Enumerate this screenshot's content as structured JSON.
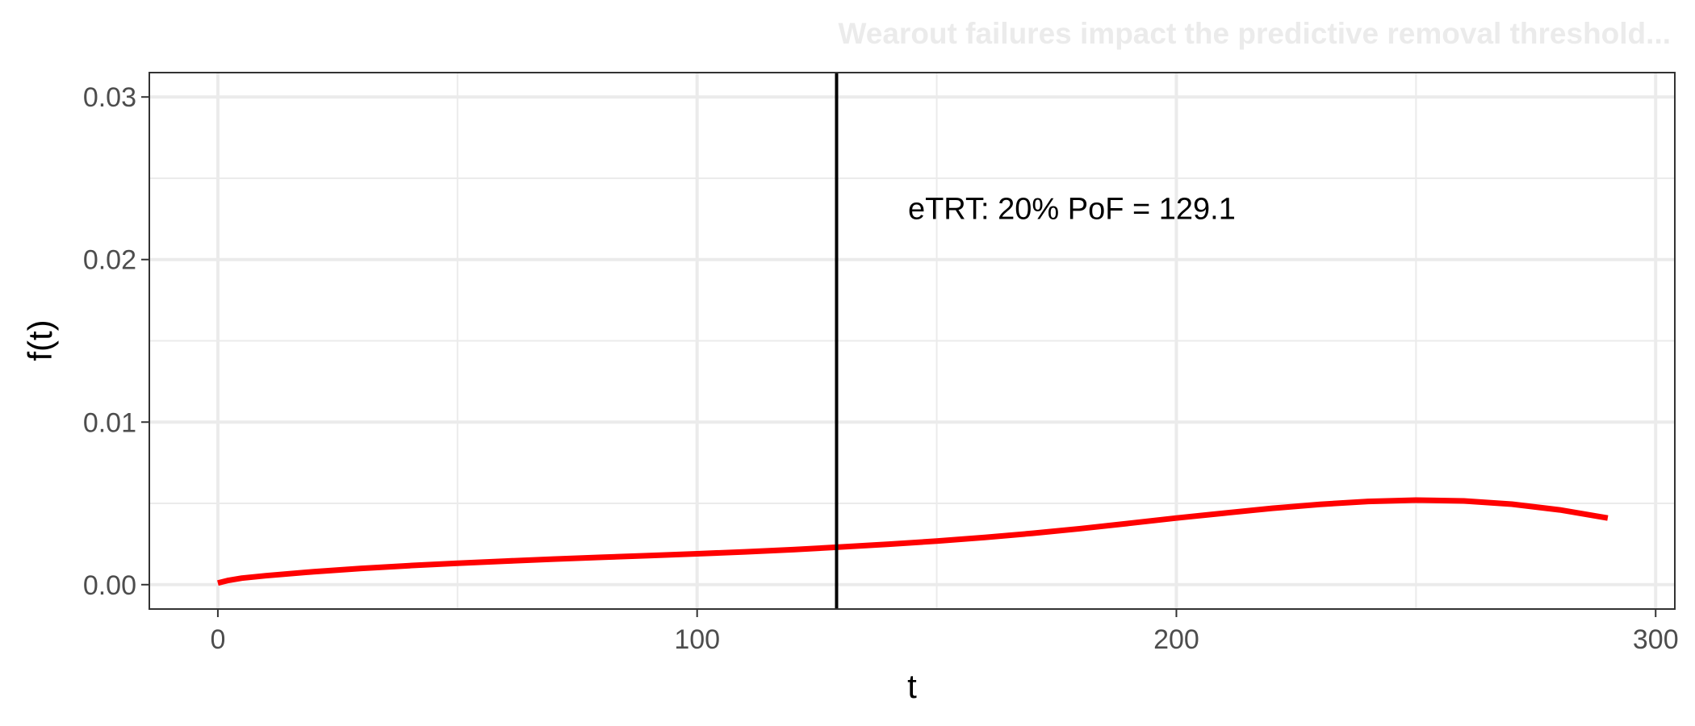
{
  "caption": "Wearout failures impact the predictive removal threshold...",
  "colors": {
    "curve": "#ff0000",
    "threshold_line": "#000000",
    "grid": "#ebebeb",
    "panel_border": "#333333",
    "tick_label": "#4d4d4d",
    "caption": "#ebebeb"
  },
  "chart_data": {
    "type": "line",
    "title": "",
    "xlabel": "t",
    "ylabel": "f(t)",
    "xlim": [
      -14.3,
      304
    ],
    "ylim": [
      -0.0015,
      0.0315
    ],
    "x_ticks": [
      0,
      100,
      200,
      300
    ],
    "x_tick_labels": [
      "0",
      "100",
      "200",
      "300"
    ],
    "x_minor_ticks": [
      50,
      150,
      250
    ],
    "y_ticks": [
      0,
      0.01,
      0.02,
      0.03
    ],
    "y_tick_labels": [
      "0.00",
      "0.01",
      "0.02",
      "0.03"
    ],
    "y_minor_ticks": [
      0.005,
      0.015,
      0.025
    ],
    "grid": true,
    "legend": "none",
    "series": [
      {
        "x": [
          0,
          2,
          5,
          10,
          20,
          30,
          40,
          50,
          60,
          70,
          80,
          90,
          100,
          110,
          120,
          129.1,
          140,
          150,
          160,
          170,
          180,
          190,
          200,
          210,
          220,
          230,
          240,
          250,
          260,
          270,
          280,
          290
        ],
        "y": [
          0.0001,
          0.00025,
          0.0004,
          0.00055,
          0.0008,
          0.001,
          0.00117,
          0.00132,
          0.00145,
          0.00157,
          0.00168,
          0.00179,
          0.0019,
          0.00202,
          0.00215,
          0.0023,
          0.00249,
          0.00268,
          0.0029,
          0.00316,
          0.00345,
          0.00377,
          0.0041,
          0.0044,
          0.0047,
          0.00494,
          0.00512,
          0.0052,
          0.00515,
          0.00495,
          0.0046,
          0.0041
        ]
      }
    ],
    "threshold": {
      "x": 129.1,
      "label": "eTRT: 20% PoF = 129.1",
      "label_x": 144,
      "label_y": 0.0225
    }
  }
}
